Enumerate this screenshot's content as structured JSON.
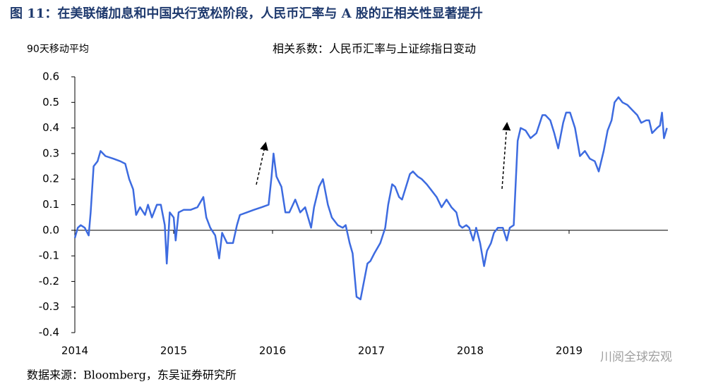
{
  "chart_data": {
    "type": "line",
    "title": "图 11：在美联储加息和中国央行宽松阶段，人民币汇率与 A 股的正相关性显著提升",
    "subtitle": "相关系数：人民币汇率与上证综指日变动",
    "ylabel": "90天移动平均",
    "source": "数据来源：Bloomberg，东吴证券研究所",
    "watermark": "川阅全球宏观",
    "xlim": [
      2014,
      2020
    ],
    "xticks": [
      2014,
      2015,
      2016,
      2017,
      2018,
      2019
    ],
    "ylim": [
      -0.4,
      0.6
    ],
    "yticks": [
      0.6,
      0.5,
      0.4,
      0.3,
      0.2,
      0.1,
      {
        "value": 0,
        "label": "0.0"
      },
      -0.1,
      -0.2,
      -0.3,
      -0.4
    ],
    "series": [
      {
        "color": "#3d6be0",
        "x": [
          2014,
          2014.03,
          2014.06,
          2014.1,
          2014.14,
          2014.16,
          2014.19,
          2014.23,
          2014.26,
          2014.31,
          2014.39,
          2014.46,
          2014.51,
          2014.55,
          2014.59,
          2014.62,
          2014.66,
          2014.71,
          2014.74,
          2014.78,
          2014.83,
          2014.87,
          2014.91,
          2014.93,
          2014.96,
          2015,
          2015.02,
          2015.05,
          2015.1,
          2015.17,
          2015.24,
          2015.3,
          2015.33,
          2015.37,
          2015.42,
          2015.46,
          2015.49,
          2015.54,
          2015.6,
          2015.64,
          2015.67,
          2015.74,
          2015.81,
          2015.89,
          2015.96,
          2015.99,
          2016.01,
          2016.04,
          2016.09,
          2016.13,
          2016.17,
          2016.23,
          2016.28,
          2016.33,
          2016.39,
          2016.42,
          2016.47,
          2016.51,
          2016.56,
          2016.6,
          2016.66,
          2016.71,
          2016.74,
          2016.78,
          2016.81,
          2016.85,
          2016.89,
          2016.92,
          2016.96,
          2016.99,
          2017.03,
          2017.09,
          2017.14,
          2017.17,
          2017.21,
          2017.24,
          2017.28,
          2017.31,
          2017.35,
          2017.39,
          2017.42,
          2017.47,
          2017.51,
          2017.56,
          2017.6,
          2017.66,
          2017.71,
          2017.76,
          2017.81,
          2017.86,
          2017.89,
          2017.92,
          2017.96,
          2017.99,
          2018.03,
          2018.06,
          2018.1,
          2018.14,
          2018.17,
          2018.21,
          2018.24,
          2018.28,
          2018.33,
          2018.37,
          2018.4,
          2018.44,
          2018.48,
          2018.51,
          2018.56,
          2018.61,
          2018.67,
          2018.73,
          2018.76,
          2018.81,
          2018.85,
          2018.89,
          2018.94,
          2018.97,
          2019.01,
          2019.06,
          2019.11,
          2019.16,
          2019.21,
          2019.26,
          2019.3,
          2019.35,
          2019.39,
          2019.43,
          2019.46,
          2019.5,
          2019.54,
          2019.59,
          2019.64,
          2019.69,
          2019.73,
          2019.78,
          2019.81,
          2019.84,
          2019.89,
          2019.92,
          2019.94,
          2019.96,
          2019.99
        ],
        "values": [
          -0.03,
          0.01,
          0.02,
          0.01,
          -0.02,
          0.07,
          0.25,
          0.27,
          0.31,
          0.29,
          0.28,
          0.27,
          0.26,
          0.2,
          0.16,
          0.06,
          0.09,
          0.06,
          0.1,
          0.05,
          0.1,
          0.1,
          0.02,
          -0.13,
          0.07,
          0.05,
          -0.04,
          0.07,
          0.08,
          0.08,
          0.09,
          0.13,
          0.05,
          0.01,
          -0.02,
          -0.11,
          -0.01,
          -0.05,
          -0.05,
          0.02,
          0.06,
          0.07,
          0.08,
          0.09,
          0.1,
          0.21,
          0.3,
          0.21,
          0.17,
          0.07,
          0.07,
          0.12,
          0.07,
          0.09,
          0.01,
          0.09,
          0.17,
          0.2,
          0.1,
          0.05,
          0.02,
          0.01,
          0.02,
          -0.05,
          -0.09,
          -0.26,
          -0.27,
          -0.21,
          -0.13,
          -0.12,
          -0.09,
          -0.05,
          0.01,
          0.1,
          0.18,
          0.17,
          0.13,
          0.12,
          0.17,
          0.22,
          0.23,
          0.21,
          0.2,
          0.18,
          0.16,
          0.13,
          0.09,
          0.12,
          0.09,
          0.07,
          0.02,
          0.01,
          0.02,
          0.01,
          -0.04,
          0.01,
          -0.05,
          -0.14,
          -0.08,
          -0.05,
          -0.01,
          0.01,
          0.01,
          -0.04,
          0.01,
          0.02,
          0.35,
          0.4,
          0.39,
          0.36,
          0.38,
          0.45,
          0.45,
          0.43,
          0.38,
          0.32,
          0.42,
          0.46,
          0.46,
          0.4,
          0.29,
          0.31,
          0.28,
          0.27,
          0.23,
          0.31,
          0.39,
          0.43,
          0.5,
          0.52,
          0.5,
          0.49,
          0.47,
          0.45,
          0.42,
          0.43,
          0.43,
          0.38,
          0.4,
          0.41,
          0.46,
          0.36,
          0.4
        ]
      }
    ]
  }
}
